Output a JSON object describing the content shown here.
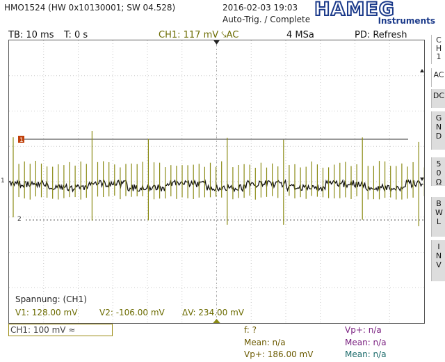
{
  "header": {
    "device": "HMO1524 (HW 0x10130001; SW 04.528)",
    "datetime": "2016-02-03 19:03",
    "trigger_status": "Auto-Trig. / Complete",
    "brand": "HAMEG",
    "brand_sub": "Instruments"
  },
  "status_bar": {
    "timebase": "TB: 10 ms",
    "trigger_time": "T: 0 s",
    "ch1_trigger": "CH1: 117 mV ⤥AC",
    "sample_rate": "4 MSa",
    "pd_mode": "PD: Refresh"
  },
  "sidebar": {
    "channel": "CH1",
    "buttons": [
      {
        "label": "AC",
        "active": true
      },
      {
        "label": "DC",
        "active": false
      },
      {
        "label": "GND",
        "active": false
      },
      {
        "label": "50Ω",
        "active": false
      },
      {
        "label": "BWL",
        "active": false
      },
      {
        "label": "INV",
        "active": false
      }
    ]
  },
  "markers": {
    "cursor1": "1",
    "cursor2": "2",
    "ch_ref": "1"
  },
  "cursor_panel": {
    "title": "Spannung: (CH1)",
    "v1": "V1: 128.00 mV",
    "v2": "V2: -106.00 mV",
    "dv": "ΔV: 234.00 mV"
  },
  "bottom": {
    "ch1_scale": "CH1: 100 mV ≈",
    "freq": "f: ?",
    "mean_a": "Mean: n/a",
    "vpp_a": "Vp+: 186.00 mV",
    "vp_b": "Vp+: n/a",
    "mean_b": "Mean: n/a",
    "mean_c": "Mean: n/a"
  },
  "colors": {
    "trace": "#8a8a14",
    "cursor_marker": "#c0400a",
    "brand": "#1b3a8a",
    "measure_1": "#6b5a00",
    "measure_2": "#7a2080",
    "measure_3": "#1a6a6a"
  },
  "icons": [
    "trigger-marker-icon",
    "ground-marker-icon",
    "cursor-1-icon",
    "cursor-2-icon"
  ]
}
